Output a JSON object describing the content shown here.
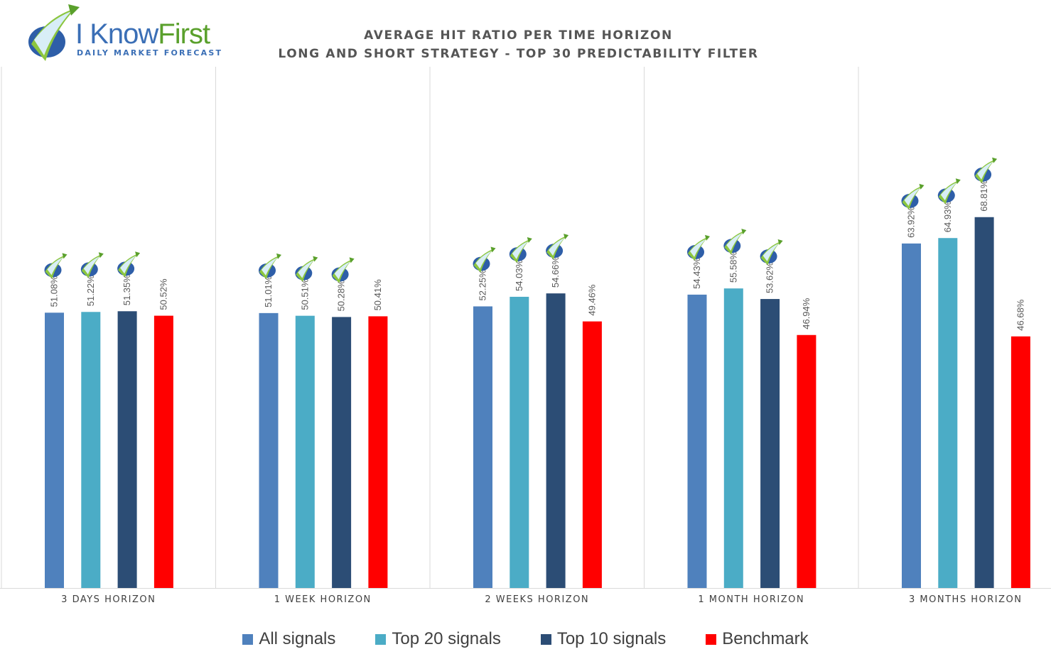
{
  "logo": {
    "word_part1": "I Know",
    "word_part2": "First",
    "tagline": "Daily Market Forecast"
  },
  "title_line1": "AVERAGE HIT RATIO PER TIME HORIZON",
  "title_line2": "LONG AND SHORT STRATEGY - TOP 30 PREDICTABILITY FILTER",
  "chart_data": {
    "type": "bar",
    "categories": [
      "3 DAYS HORIZON",
      "1 WEEK HORIZON",
      "2 WEEKS HORIZON",
      "1 MONTH HORIZON",
      "3 MONTHS HORIZON"
    ],
    "series": [
      {
        "name": "All signals",
        "color": "#4f81bd",
        "values": [
          51.08,
          51.01,
          52.25,
          54.43,
          63.92
        ],
        "labels": [
          "51.08%",
          "51.01%",
          "52.25%",
          "54.43%",
          "63.92%"
        ]
      },
      {
        "name": "Top 20 signals",
        "color": "#4bacc6",
        "values": [
          51.22,
          50.51,
          54.03,
          55.58,
          64.93
        ],
        "labels": [
          "51.22%",
          "50.51%",
          "54.03%",
          "55.58%",
          "64.93%"
        ]
      },
      {
        "name": "Top 10 signals",
        "color": "#2c4d75",
        "values": [
          51.35,
          50.28,
          54.66,
          53.62,
          68.81
        ],
        "labels": [
          "51.35%",
          "50.28%",
          "54.66%",
          "53.62%",
          "68.81%"
        ]
      },
      {
        "name": "Benchmark",
        "color": "#ff0000",
        "values": [
          50.52,
          50.41,
          49.46,
          46.94,
          46.68
        ],
        "labels": [
          "50.52%",
          "50.41%",
          "49.46%",
          "46.94%",
          "46.68%"
        ]
      }
    ],
    "logo_marked_series": [
      "All signals",
      "Top 20 signals",
      "Top 10 signals"
    ],
    "ylim": [
      0,
      100
    ],
    "legend_position": "bottom",
    "grid": false,
    "xlabel": "",
    "ylabel": ""
  }
}
